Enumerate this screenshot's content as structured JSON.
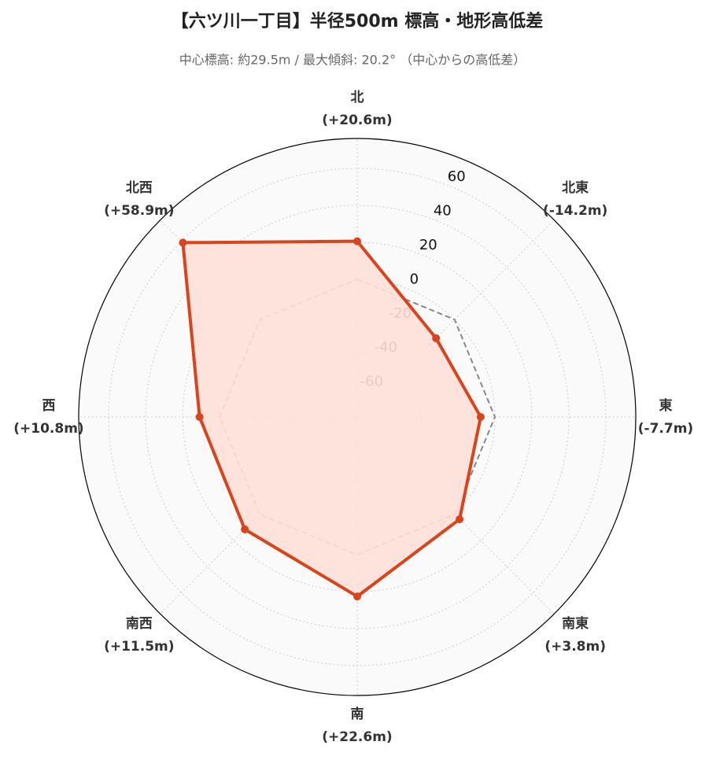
{
  "chart_data": {
    "type": "radar",
    "title": "【六ツ川一丁目】半径500m 標高・地形高低差",
    "subtitle": "中心標高: 約29.5m / 最大傾斜: 20.2° （中心からの高低差）",
    "categories": [
      "北",
      "北東",
      "東",
      "南東",
      "南",
      "南西",
      "西",
      "北西"
    ],
    "series": [
      {
        "color": "#d9441c",
        "fill": "#fde0d8",
        "values": [
          20.6,
          -14.2,
          -7.7,
          3.8,
          22.6,
          11.5,
          10.8,
          58.9
        ],
        "value_labels": [
          "(+20.6m)",
          "(-14.2m)",
          "(-7.7m)",
          "(+3.8m)",
          "(+22.6m)",
          "(+11.5m)",
          "(+10.8m)",
          "(+58.9m)"
        ]
      }
    ],
    "reference_value": 0,
    "ylim": [
      -74.5,
      76.2
    ],
    "yticks": [
      -60,
      -40,
      -20,
      0,
      20,
      40,
      60
    ],
    "grid": true
  }
}
